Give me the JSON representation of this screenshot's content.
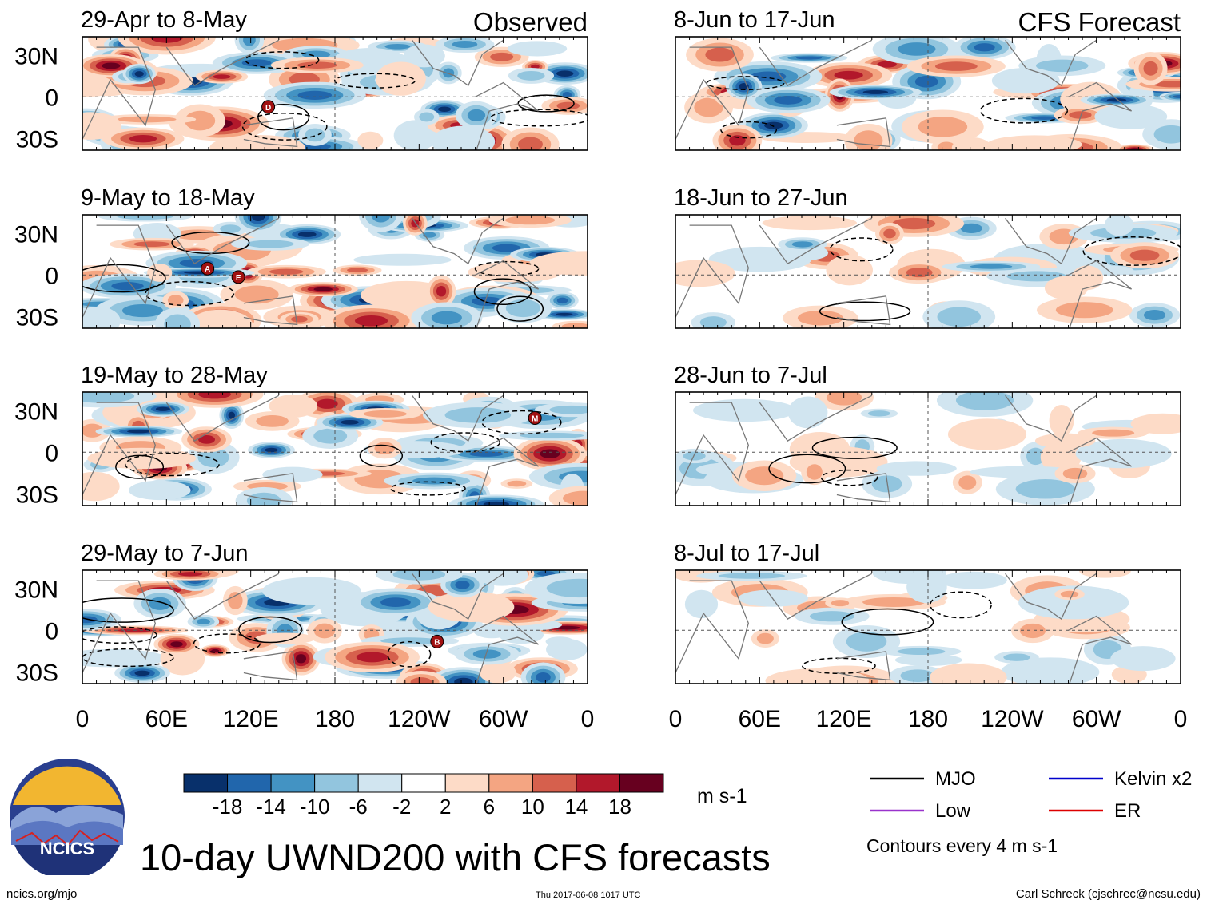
{
  "chart_data": {
    "type": "heatmap",
    "title": "10-day UWND200 with CFS forecasts",
    "variable": "UWND200",
    "units": "m s-1",
    "column_labels": {
      "left": "Observed",
      "right": "CFS Forecast"
    },
    "x_ticks": [
      "0",
      "60E",
      "120E",
      "180",
      "120W",
      "60W",
      "0"
    ],
    "y_ticks": [
      "30N",
      "0",
      "30S"
    ],
    "panels": [
      {
        "column": "left",
        "period": "29-Apr to 8-May",
        "markers": [
          "D"
        ]
      },
      {
        "column": "left",
        "period": "9-May to 18-May",
        "markers": [
          "A",
          "E"
        ]
      },
      {
        "column": "left",
        "period": "19-May to 28-May",
        "markers": [
          "M"
        ]
      },
      {
        "column": "left",
        "period": "29-May to 7-Jun",
        "markers": [
          "B"
        ]
      },
      {
        "column": "right",
        "period": "8-Jun to 17-Jun",
        "markers": []
      },
      {
        "column": "right",
        "period": "18-Jun to 27-Jun",
        "markers": []
      },
      {
        "column": "right",
        "period": "28-Jun to 7-Jul",
        "markers": []
      },
      {
        "column": "right",
        "period": "8-Jul to 17-Jul",
        "markers": []
      }
    ],
    "colorbar": {
      "ticks": [
        "-18",
        "-14",
        "-10",
        "-6",
        "-2",
        "2",
        "6",
        "10",
        "14",
        "18"
      ],
      "colors": [
        "#08306b",
        "#2166ac",
        "#4393c3",
        "#92c5de",
        "#d1e5f0",
        "#ffffff",
        "#fddbc7",
        "#f4a582",
        "#d6604d",
        "#b2182b",
        "#67001f"
      ]
    },
    "legend": [
      {
        "label": "MJO",
        "color": "#000000"
      },
      {
        "label": "Kelvin x2",
        "color": "#0000cc"
      },
      {
        "label": "Low",
        "color": "#9933cc"
      },
      {
        "label": "ER",
        "color": "#dd0000"
      }
    ],
    "contour_note": "Contours every 4 m s-1"
  },
  "footer": {
    "left": "ncics.org/mjo",
    "center": "Thu 2017-06-08 1017 UTC",
    "right": "Carl Schreck (cjschrec@ncsu.edu)"
  },
  "logo_text": "NCICS"
}
